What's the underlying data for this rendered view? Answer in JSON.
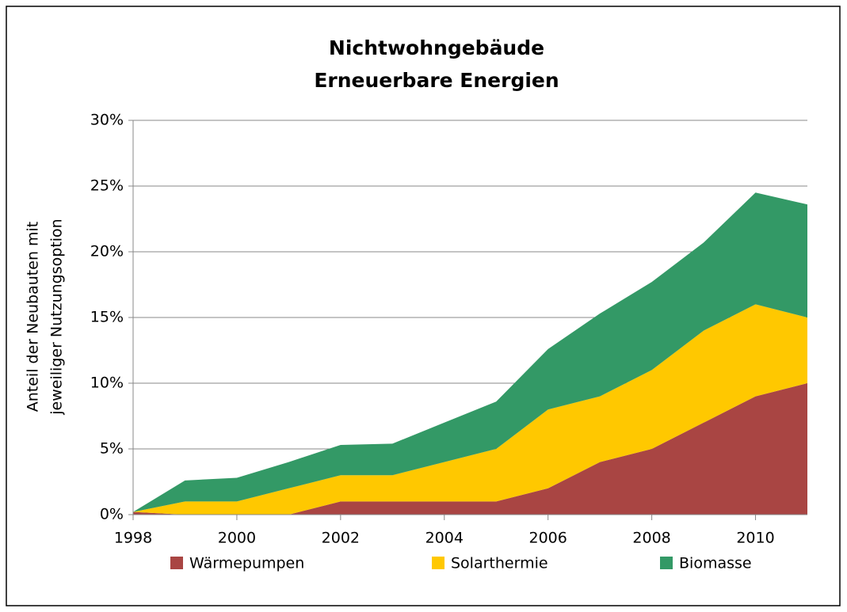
{
  "chart_data": {
    "type": "stacked_area",
    "title": [
      "Nichtwohngebäude",
      "Erneuerbare Energien"
    ],
    "y_label": [
      "Anteil der Neubauten mit",
      "jeweiliger Nutzungsoption"
    ],
    "x": [
      1998,
      1999,
      2000,
      2001,
      2002,
      2003,
      2004,
      2005,
      2006,
      2007,
      2008,
      2009,
      2010,
      2011
    ],
    "series": [
      {
        "name": "Wärmepumpen",
        "color": "#a94543",
        "values": [
          0.2,
          0,
          0,
          0,
          1,
          1,
          1,
          1,
          2,
          4,
          5,
          7,
          9,
          10
        ]
      },
      {
        "name": "Solarthermie",
        "color": "#ffc800",
        "values": [
          0,
          1,
          1,
          2,
          2,
          2,
          3,
          4,
          6,
          5,
          6,
          7,
          7,
          5
        ]
      },
      {
        "name": "Biomasse",
        "color": "#339966",
        "values": [
          0,
          1.6,
          1.8,
          2.0,
          2.3,
          2.4,
          3.0,
          3.6,
          4.6,
          6.3,
          6.7,
          6.7,
          8.5,
          8.6
        ]
      }
    ],
    "xlim": [
      1998,
      2011
    ],
    "xticks": [
      1998,
      2000,
      2002,
      2004,
      2006,
      2008,
      2010
    ],
    "ylim": [
      0,
      30
    ],
    "yticks": [
      {
        "value": 0,
        "label": "0%"
      },
      {
        "value": 5,
        "label": "5%"
      },
      {
        "value": 10,
        "label": "10%"
      },
      {
        "value": 15,
        "label": "15%"
      },
      {
        "value": 20,
        "label": "20%"
      },
      {
        "value": 25,
        "label": "25%"
      },
      {
        "value": 30,
        "label": "30%"
      }
    ],
    "grid": true,
    "legend": "bottom"
  }
}
